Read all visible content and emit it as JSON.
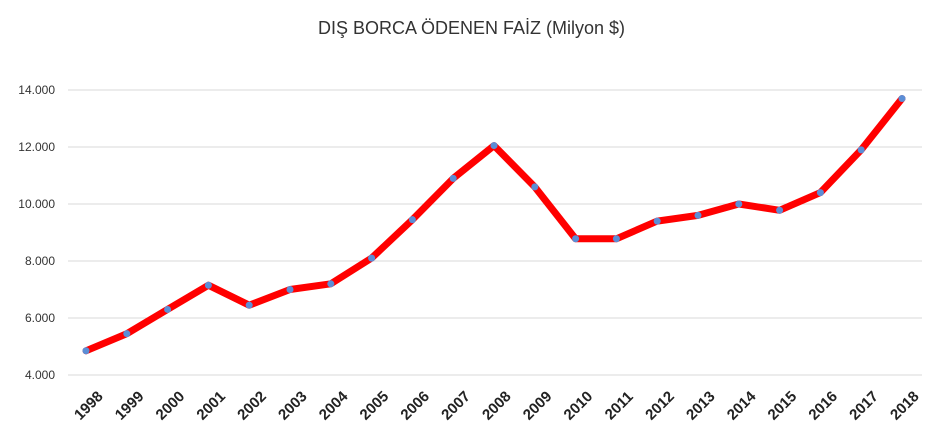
{
  "chart_data": {
    "type": "line",
    "title": "DIŞ BORCA ÖDENEN FAİZ (Milyon $)",
    "xlabel": "",
    "ylabel": "",
    "categories": [
      "1998",
      "1999",
      "2000",
      "2001",
      "2002",
      "2003",
      "2004",
      "2005",
      "2006",
      "2007",
      "2008",
      "2009",
      "2010",
      "2011",
      "2012",
      "2013",
      "2014",
      "2015",
      "2016",
      "2017",
      "2018"
    ],
    "series": [
      {
        "values": [
          4850,
          5450,
          6300,
          7150,
          6450,
          7000,
          7200,
          8100,
          9450,
          10900,
          12050,
          10600,
          8780,
          8780,
          9400,
          9600,
          10000,
          9780,
          10400,
          11900,
          13700
        ]
      }
    ],
    "ylim": [
      4000,
      14000
    ],
    "yticks": [
      {
        "value": 4000,
        "label": "4.000"
      },
      {
        "value": 6000,
        "label": "6.000"
      },
      {
        "value": 8000,
        "label": "8.000"
      },
      {
        "value": 10000,
        "label": "10.000"
      },
      {
        "value": 12000,
        "label": "12.000"
      },
      {
        "value": 14000,
        "label": "14.000"
      }
    ],
    "grid": true,
    "legend": "none",
    "colors": {
      "line": "#ff0000",
      "marker": "#5b8ed6",
      "grid": "#d9d9d9"
    }
  }
}
